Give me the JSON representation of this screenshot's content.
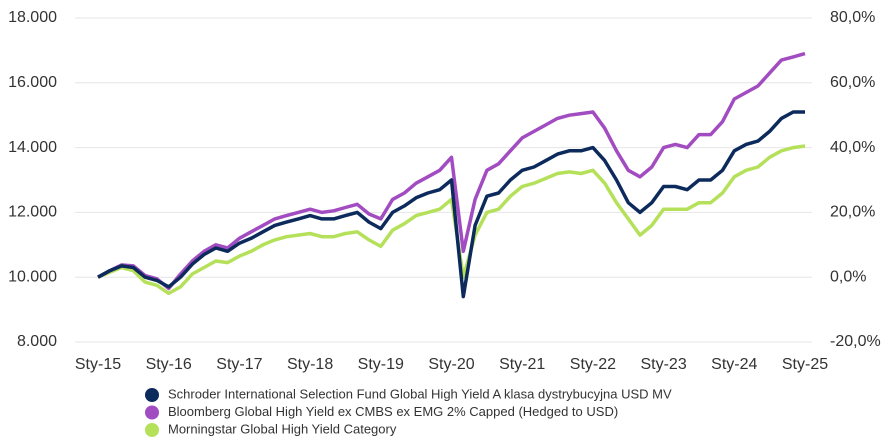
{
  "chart_data": {
    "type": "line",
    "categories": [
      "Sty-15",
      null,
      null,
      null,
      null,
      null,
      "Sty-16",
      null,
      null,
      null,
      null,
      null,
      "Sty-17",
      null,
      null,
      null,
      null,
      null,
      "Sty-18",
      null,
      null,
      null,
      null,
      null,
      "Sty-19",
      null,
      null,
      null,
      null,
      null,
      "Sty-20",
      null,
      null,
      null,
      null,
      null,
      "Sty-21",
      null,
      null,
      null,
      null,
      null,
      "Sty-22",
      null,
      null,
      null,
      null,
      null,
      "Sty-23",
      null,
      null,
      null,
      null,
      null,
      "Sty-24",
      null,
      null,
      null,
      null,
      null,
      "Sty-25"
    ],
    "series": [
      {
        "name": "Schroder International Selection Fund Global High Yield A klasa dystrybucyjna USD MV",
        "color": "#0d2a5c",
        "values": [
          10000,
          10200,
          10350,
          10300,
          10000,
          9900,
          9700,
          10000,
          10400,
          10700,
          10900,
          10800,
          11050,
          11200,
          11400,
          11600,
          11700,
          11800,
          11900,
          11800,
          11800,
          11900,
          12000,
          11700,
          11500,
          12000,
          12200,
          12450,
          12600,
          12700,
          13000,
          9400,
          11600,
          12500,
          12600,
          13000,
          13300,
          13400,
          13600,
          13800,
          13900,
          13900,
          14000,
          13600,
          13000,
          12300,
          12000,
          12300,
          12800,
          12800,
          12700,
          13000,
          13000,
          13300,
          13900,
          14100,
          14200,
          14500,
          14900,
          15100,
          15100
        ]
      },
      {
        "name": "Bloomberg Global High Yield ex CMBS ex EMG 2% Capped (Hedged to USD)",
        "color": "#a24cc2",
        "values": [
          10000,
          10200,
          10380,
          10350,
          10050,
          9950,
          9650,
          10100,
          10500,
          10800,
          11000,
          10900,
          11200,
          11400,
          11600,
          11800,
          11900,
          12000,
          12100,
          12000,
          12050,
          12150,
          12250,
          11950,
          11800,
          12400,
          12600,
          12900,
          13100,
          13300,
          13700,
          10800,
          12400,
          13300,
          13500,
          13900,
          14300,
          14500,
          14700,
          14900,
          15000,
          15050,
          15100,
          14600,
          13900,
          13300,
          13100,
          13400,
          14000,
          14100,
          14000,
          14400,
          14400,
          14800,
          15500,
          15700,
          15900,
          16300,
          16700,
          16800,
          16900
        ]
      },
      {
        "name": "Morningstar Global High Yield Category",
        "color": "#b5e05a",
        "values": [
          10000,
          10150,
          10300,
          10200,
          9850,
          9750,
          9500,
          9700,
          10100,
          10300,
          10500,
          10450,
          10650,
          10800,
          11000,
          11150,
          11250,
          11300,
          11350,
          11250,
          11250,
          11350,
          11400,
          11150,
          10950,
          11450,
          11650,
          11900,
          12000,
          12100,
          12400,
          10000,
          11300,
          12000,
          12100,
          12500,
          12800,
          12900,
          13050,
          13200,
          13250,
          13200,
          13300,
          12900,
          12300,
          11800,
          11300,
          11600,
          12100,
          12100,
          12100,
          12300,
          12300,
          12600,
          13100,
          13300,
          13400,
          13700,
          13900,
          14000,
          14050
        ]
      }
    ],
    "ylim": [
      8000,
      18000
    ],
    "yticks": [
      {
        "value": 8000,
        "label": "8.000"
      },
      {
        "value": 10000,
        "label": "10.000"
      },
      {
        "value": 12000,
        "label": "12.000"
      },
      {
        "value": 14000,
        "label": "14.000"
      },
      {
        "value": 16000,
        "label": "16.000"
      },
      {
        "value": 18000,
        "label": "18.000"
      }
    ],
    "y2lim": [
      -20,
      80
    ],
    "y2ticks": [
      {
        "value": -20,
        "label": "-20,0%"
      },
      {
        "value": 0,
        "label": "0,0%"
      },
      {
        "value": 20,
        "label": "20,0%"
      },
      {
        "value": 40,
        "label": "40,0%"
      },
      {
        "value": 60,
        "label": "60,0%"
      },
      {
        "value": 80,
        "label": "80,0%"
      }
    ],
    "grid": true,
    "legend": "bottom"
  }
}
